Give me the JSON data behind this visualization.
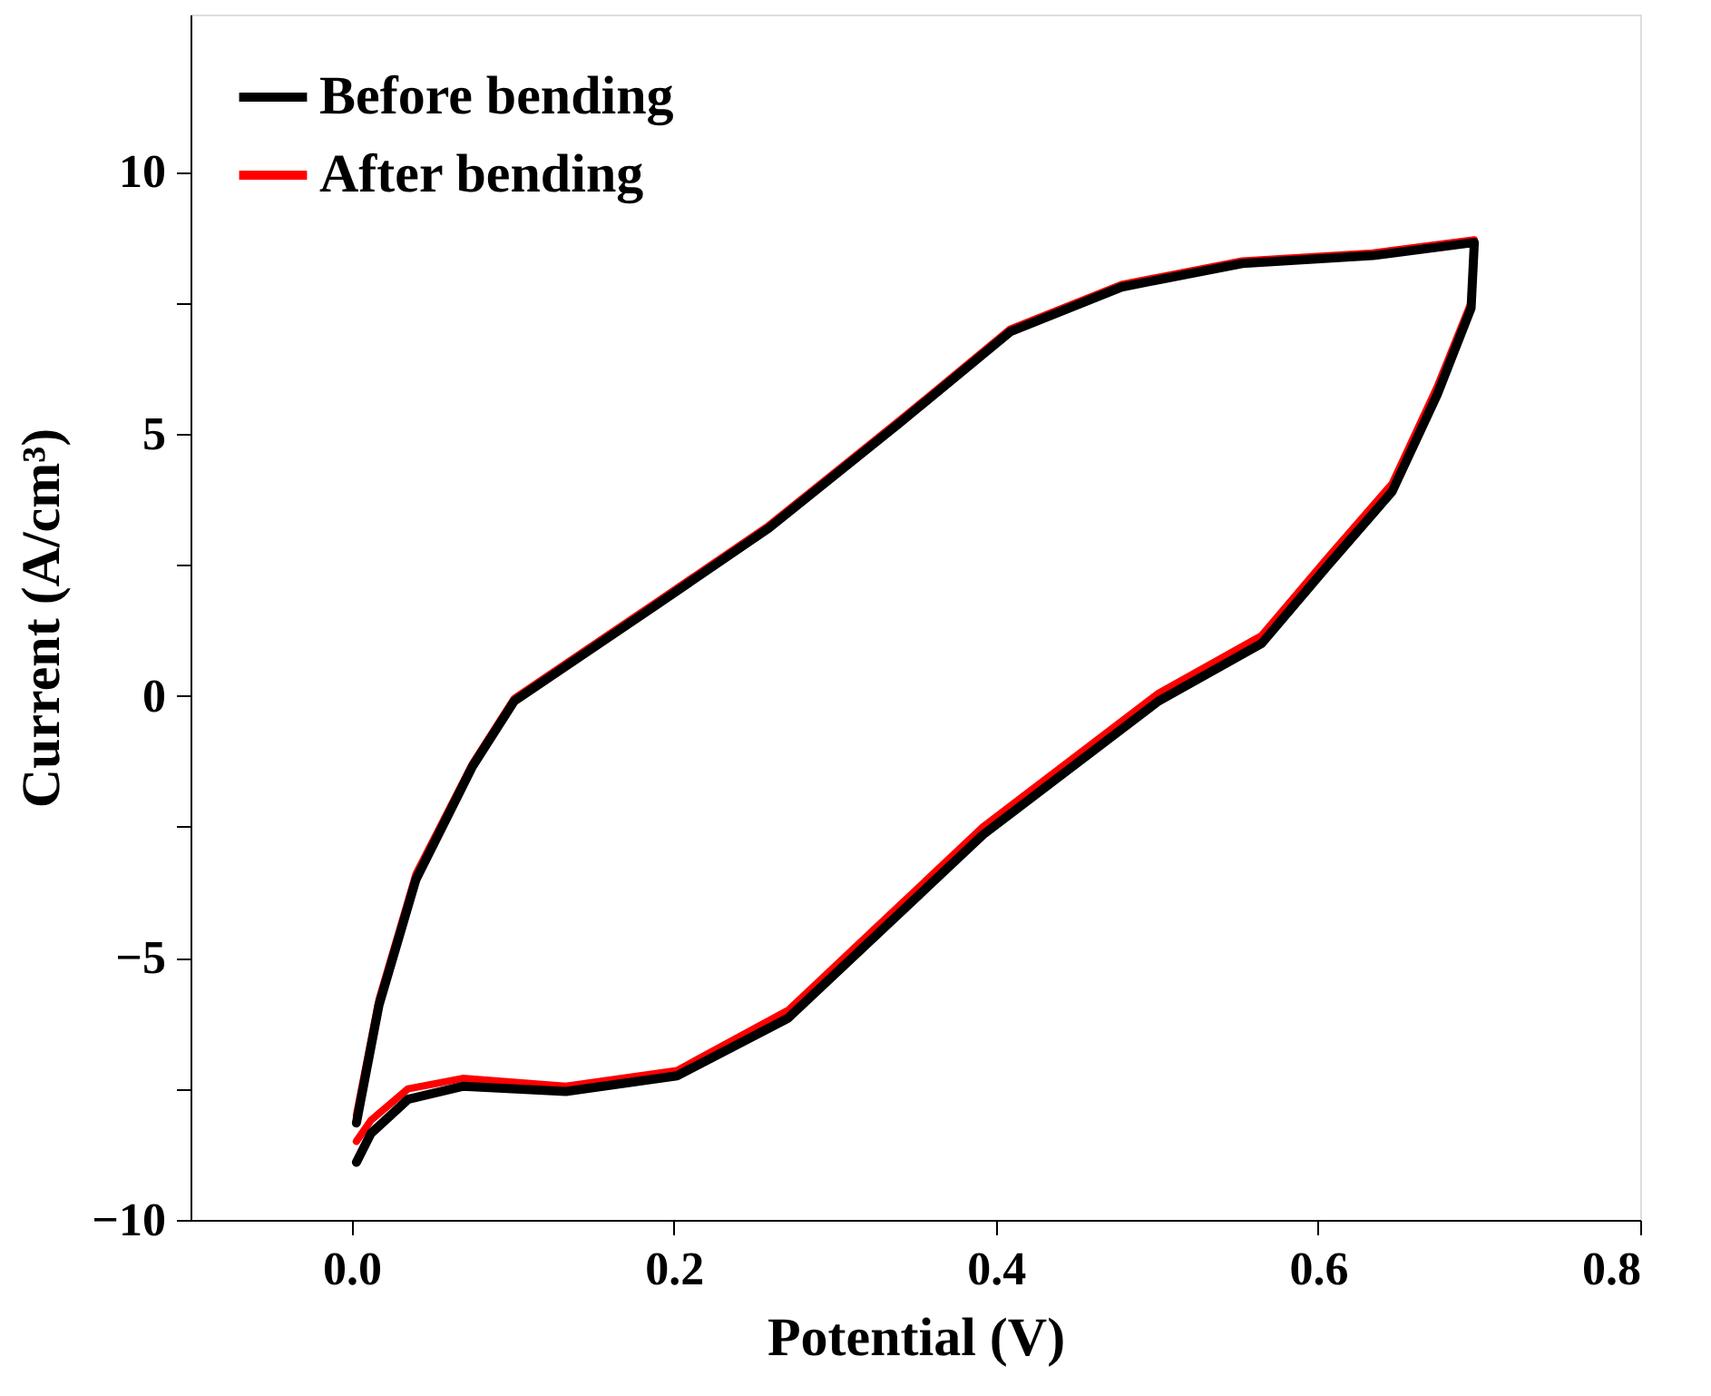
{
  "chart_data": {
    "type": "line",
    "xlabel": "Potential (V)",
    "ylabel": "Current (A/cm³)",
    "xlim": [
      -0.1,
      0.8
    ],
    "ylim": [
      -10,
      13
    ],
    "xticks": [
      {
        "value": 0,
        "label": "0.0"
      },
      0.2,
      0.4,
      0.6,
      0.8
    ],
    "yticks": [
      -10,
      {
        "value": -7.5,
        "label": null
      },
      -5,
      {
        "value": -2.5,
        "label": null
      },
      0,
      {
        "value": 2.5,
        "label": null
      },
      5,
      {
        "value": 7.5,
        "label": null
      },
      10
    ],
    "grid": false,
    "legend": "top left",
    "line_style": "solid",
    "marker": "none",
    "series": [
      {
        "name": "Before bending",
        "color": "#000000",
        "x": [
          0.003,
          0.017,
          0.04,
          0.075,
          0.101,
          0.19,
          0.259,
          0.34,
          0.409,
          0.478,
          0.553,
          0.634,
          0.697,
          0.695,
          0.674,
          0.646,
          0.605,
          0.565,
          0.501,
          0.392,
          0.271,
          0.202,
          0.133,
          0.069,
          0.035,
          0.012,
          0.003
        ],
        "values": [
          -8.15,
          -5.9,
          -3.5,
          -1.35,
          -0.1,
          1.75,
          3.2,
          5.2,
          6.95,
          7.8,
          8.25,
          8.4,
          8.65,
          7.4,
          5.75,
          3.9,
          2.45,
          1.0,
          -0.1,
          -2.65,
          -6.15,
          -7.25,
          -7.55,
          -7.45,
          -7.7,
          -8.35,
          -8.9
        ]
      },
      {
        "name": "After bending",
        "color": "#ff0000",
        "x": [
          0.003,
          0.017,
          0.04,
          0.075,
          0.101,
          0.19,
          0.259,
          0.34,
          0.409,
          0.478,
          0.553,
          0.634,
          0.697,
          0.695,
          0.674,
          0.646,
          0.605,
          0.565,
          0.501,
          0.392,
          0.271,
          0.202,
          0.133,
          0.069,
          0.035,
          0.012,
          0.003
        ],
        "values": [
          -8.0,
          -5.8,
          -3.4,
          -1.3,
          -0.05,
          1.8,
          3.25,
          5.25,
          7.0,
          7.85,
          8.3,
          8.45,
          8.7,
          7.5,
          5.9,
          4.05,
          2.6,
          1.15,
          0.05,
          -2.5,
          -6.0,
          -7.15,
          -7.45,
          -7.3,
          -7.5,
          -8.1,
          -8.5
        ]
      }
    ]
  }
}
